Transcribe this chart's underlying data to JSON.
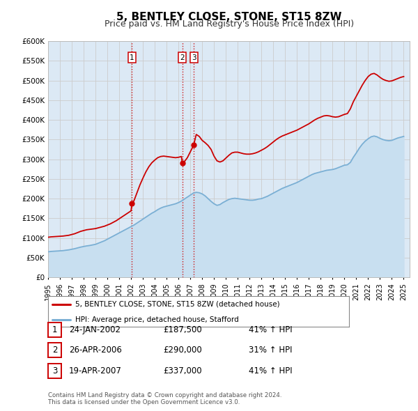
{
  "title": "5, BENTLEY CLOSE, STONE, ST15 8ZW",
  "subtitle": "Price paid vs. HM Land Registry's House Price Index (HPI)",
  "title_fontsize": 11,
  "subtitle_fontsize": 9,
  "ylim": [
    0,
    600000
  ],
  "yticks": [
    0,
    50000,
    100000,
    150000,
    200000,
    250000,
    300000,
    350000,
    400000,
    450000,
    500000,
    550000,
    600000
  ],
  "ytick_labels": [
    "£0",
    "£50K",
    "£100K",
    "£150K",
    "£200K",
    "£250K",
    "£300K",
    "£350K",
    "£400K",
    "£450K",
    "£500K",
    "£550K",
    "£600K"
  ],
  "xlim_start": 1995.0,
  "xlim_end": 2025.5,
  "xtick_years": [
    1995,
    1996,
    1997,
    1998,
    1999,
    2000,
    2001,
    2002,
    2003,
    2004,
    2005,
    2006,
    2007,
    2008,
    2009,
    2010,
    2011,
    2012,
    2013,
    2014,
    2015,
    2016,
    2017,
    2018,
    2019,
    2020,
    2021,
    2022,
    2023,
    2024,
    2025
  ],
  "sale_color": "#cc0000",
  "hpi_color": "#7aafd4",
  "hpi_fill_color": "#c8dff0",
  "sale_linewidth": 1.3,
  "hpi_linewidth": 1.3,
  "marker_color": "#cc0000",
  "marker_size": 6,
  "vline_color": "#cc0000",
  "vline_style": ":",
  "grid_color": "#cccccc",
  "background_color": "#ffffff",
  "plot_bg_color": "#dce9f5",
  "legend_label_sale": "5, BENTLEY CLOSE, STONE, ST15 8ZW (detached house)",
  "legend_label_hpi": "HPI: Average price, detached house, Stafford",
  "table_rows": [
    {
      "num": "1",
      "date": "24-JAN-2002",
      "price": "£187,500",
      "pct": "41% ↑ HPI"
    },
    {
      "num": "2",
      "date": "26-APR-2006",
      "price": "£290,000",
      "pct": "31% ↑ HPI"
    },
    {
      "num": "3",
      "date": "19-APR-2007",
      "price": "£337,000",
      "pct": "41% ↑ HPI"
    }
  ],
  "footnote": "Contains HM Land Registry data © Crown copyright and database right 2024.\nThis data is licensed under the Open Government Licence v3.0.",
  "sale_points": [
    {
      "year": 2002.07,
      "value": 187500,
      "label": "1"
    },
    {
      "year": 2006.32,
      "value": 290000,
      "label": "2"
    },
    {
      "year": 2007.29,
      "value": 337000,
      "label": "3"
    }
  ],
  "hpi_data": [
    [
      1995.0,
      65000
    ],
    [
      1995.25,
      66000
    ],
    [
      1995.5,
      66500
    ],
    [
      1995.75,
      67000
    ],
    [
      1996.0,
      67500
    ],
    [
      1996.25,
      68000
    ],
    [
      1996.5,
      69000
    ],
    [
      1996.75,
      70000
    ],
    [
      1997.0,
      71500
    ],
    [
      1997.25,
      73000
    ],
    [
      1997.5,
      75000
    ],
    [
      1997.75,
      77000
    ],
    [
      1998.0,
      78500
    ],
    [
      1998.25,
      80000
    ],
    [
      1998.5,
      81000
    ],
    [
      1998.75,
      82500
    ],
    [
      1999.0,
      84000
    ],
    [
      1999.25,
      87000
    ],
    [
      1999.5,
      90000
    ],
    [
      1999.75,
      93000
    ],
    [
      2000.0,
      97000
    ],
    [
      2000.25,
      101000
    ],
    [
      2000.5,
      105000
    ],
    [
      2000.75,
      109000
    ],
    [
      2001.0,
      113000
    ],
    [
      2001.25,
      117000
    ],
    [
      2001.5,
      121000
    ],
    [
      2001.75,
      125000
    ],
    [
      2002.0,
      129000
    ],
    [
      2002.25,
      133000
    ],
    [
      2002.5,
      138000
    ],
    [
      2002.75,
      143000
    ],
    [
      2003.0,
      148000
    ],
    [
      2003.25,
      153000
    ],
    [
      2003.5,
      158000
    ],
    [
      2003.75,
      163000
    ],
    [
      2004.0,
      167000
    ],
    [
      2004.25,
      172000
    ],
    [
      2004.5,
      176000
    ],
    [
      2004.75,
      179000
    ],
    [
      2005.0,
      181000
    ],
    [
      2005.25,
      183000
    ],
    [
      2005.5,
      185000
    ],
    [
      2005.75,
      187000
    ],
    [
      2006.0,
      190000
    ],
    [
      2006.25,
      194000
    ],
    [
      2006.5,
      199000
    ],
    [
      2006.75,
      204000
    ],
    [
      2007.0,
      209000
    ],
    [
      2007.25,
      214000
    ],
    [
      2007.5,
      216000
    ],
    [
      2007.75,
      215000
    ],
    [
      2008.0,
      212000
    ],
    [
      2008.25,
      207000
    ],
    [
      2008.5,
      200000
    ],
    [
      2008.75,
      193000
    ],
    [
      2009.0,
      187000
    ],
    [
      2009.25,
      183000
    ],
    [
      2009.5,
      185000
    ],
    [
      2009.75,
      190000
    ],
    [
      2010.0,
      194000
    ],
    [
      2010.25,
      198000
    ],
    [
      2010.5,
      200000
    ],
    [
      2010.75,
      201000
    ],
    [
      2011.0,
      200000
    ],
    [
      2011.25,
      199000
    ],
    [
      2011.5,
      198000
    ],
    [
      2011.75,
      197000
    ],
    [
      2012.0,
      196000
    ],
    [
      2012.25,
      196000
    ],
    [
      2012.5,
      197000
    ],
    [
      2012.75,
      199000
    ],
    [
      2013.0,
      200000
    ],
    [
      2013.25,
      203000
    ],
    [
      2013.5,
      206000
    ],
    [
      2013.75,
      210000
    ],
    [
      2014.0,
      214000
    ],
    [
      2014.25,
      218000
    ],
    [
      2014.5,
      222000
    ],
    [
      2014.75,
      226000
    ],
    [
      2015.0,
      229000
    ],
    [
      2015.25,
      232000
    ],
    [
      2015.5,
      235000
    ],
    [
      2015.75,
      238000
    ],
    [
      2016.0,
      241000
    ],
    [
      2016.25,
      245000
    ],
    [
      2016.5,
      249000
    ],
    [
      2016.75,
      253000
    ],
    [
      2017.0,
      257000
    ],
    [
      2017.25,
      261000
    ],
    [
      2017.5,
      264000
    ],
    [
      2017.75,
      266000
    ],
    [
      2018.0,
      268000
    ],
    [
      2018.25,
      270000
    ],
    [
      2018.5,
      272000
    ],
    [
      2018.75,
      273000
    ],
    [
      2019.0,
      274000
    ],
    [
      2019.25,
      276000
    ],
    [
      2019.5,
      279000
    ],
    [
      2019.75,
      282000
    ],
    [
      2020.0,
      285000
    ],
    [
      2020.25,
      286000
    ],
    [
      2020.5,
      292000
    ],
    [
      2020.75,
      305000
    ],
    [
      2021.0,
      316000
    ],
    [
      2021.25,
      328000
    ],
    [
      2021.5,
      338000
    ],
    [
      2021.75,
      346000
    ],
    [
      2022.0,
      352000
    ],
    [
      2022.25,
      357000
    ],
    [
      2022.5,
      359000
    ],
    [
      2022.75,
      357000
    ],
    [
      2023.0,
      353000
    ],
    [
      2023.25,
      350000
    ],
    [
      2023.5,
      348000
    ],
    [
      2023.75,
      347000
    ],
    [
      2024.0,
      348000
    ],
    [
      2024.25,
      351000
    ],
    [
      2024.5,
      354000
    ],
    [
      2024.75,
      356000
    ],
    [
      2025.0,
      358000
    ]
  ],
  "sale_data": [
    [
      1995.0,
      102000
    ],
    [
      1995.25,
      103000
    ],
    [
      1995.5,
      103500
    ],
    [
      1995.75,
      104000
    ],
    [
      1996.0,
      104500
    ],
    [
      1996.25,
      105000
    ],
    [
      1996.5,
      106000
    ],
    [
      1996.75,
      107000
    ],
    [
      1997.0,
      109000
    ],
    [
      1997.25,
      111000
    ],
    [
      1997.5,
      114000
    ],
    [
      1997.75,
      117000
    ],
    [
      1998.0,
      119000
    ],
    [
      1998.25,
      121000
    ],
    [
      1998.5,
      122000
    ],
    [
      1998.75,
      123000
    ],
    [
      1999.0,
      124000
    ],
    [
      1999.25,
      126000
    ],
    [
      1999.5,
      128000
    ],
    [
      1999.75,
      130000
    ],
    [
      2000.0,
      133000
    ],
    [
      2000.25,
      136000
    ],
    [
      2000.5,
      140000
    ],
    [
      2000.75,
      144000
    ],
    [
      2001.0,
      149000
    ],
    [
      2001.25,
      154000
    ],
    [
      2001.5,
      159000
    ],
    [
      2001.75,
      164000
    ],
    [
      2002.0,
      169000
    ],
    [
      2002.07,
      187500
    ],
    [
      2002.25,
      195000
    ],
    [
      2002.5,
      215000
    ],
    [
      2002.75,
      235000
    ],
    [
      2003.0,
      252000
    ],
    [
      2003.25,
      268000
    ],
    [
      2003.5,
      281000
    ],
    [
      2003.75,
      291000
    ],
    [
      2004.0,
      298000
    ],
    [
      2004.25,
      304000
    ],
    [
      2004.5,
      307000
    ],
    [
      2004.75,
      308000
    ],
    [
      2005.0,
      307000
    ],
    [
      2005.25,
      306000
    ],
    [
      2005.5,
      305000
    ],
    [
      2005.75,
      304000
    ],
    [
      2006.0,
      305000
    ],
    [
      2006.25,
      307000
    ],
    [
      2006.32,
      290000
    ],
    [
      2006.5,
      294000
    ],
    [
      2006.75,
      304000
    ],
    [
      2007.0,
      319000
    ],
    [
      2007.25,
      334000
    ],
    [
      2007.29,
      337000
    ],
    [
      2007.5,
      363000
    ],
    [
      2007.75,
      358000
    ],
    [
      2008.0,
      348000
    ],
    [
      2008.25,
      342000
    ],
    [
      2008.5,
      335000
    ],
    [
      2008.75,
      325000
    ],
    [
      2009.0,
      308000
    ],
    [
      2009.25,
      296000
    ],
    [
      2009.5,
      293000
    ],
    [
      2009.75,
      296000
    ],
    [
      2010.0,
      303000
    ],
    [
      2010.25,
      310000
    ],
    [
      2010.5,
      316000
    ],
    [
      2010.75,
      318000
    ],
    [
      2011.0,
      318000
    ],
    [
      2011.25,
      316000
    ],
    [
      2011.5,
      314000
    ],
    [
      2011.75,
      313000
    ],
    [
      2012.0,
      313000
    ],
    [
      2012.25,
      314000
    ],
    [
      2012.5,
      316000
    ],
    [
      2012.75,
      319000
    ],
    [
      2013.0,
      323000
    ],
    [
      2013.25,
      327000
    ],
    [
      2013.5,
      332000
    ],
    [
      2013.75,
      338000
    ],
    [
      2014.0,
      344000
    ],
    [
      2014.25,
      350000
    ],
    [
      2014.5,
      355000
    ],
    [
      2014.75,
      359000
    ],
    [
      2015.0,
      362000
    ],
    [
      2015.25,
      365000
    ],
    [
      2015.5,
      368000
    ],
    [
      2015.75,
      371000
    ],
    [
      2016.0,
      374000
    ],
    [
      2016.25,
      378000
    ],
    [
      2016.5,
      382000
    ],
    [
      2016.75,
      386000
    ],
    [
      2017.0,
      390000
    ],
    [
      2017.25,
      395000
    ],
    [
      2017.5,
      400000
    ],
    [
      2017.75,
      404000
    ],
    [
      2018.0,
      407000
    ],
    [
      2018.25,
      410000
    ],
    [
      2018.5,
      411000
    ],
    [
      2018.75,
      410000
    ],
    [
      2019.0,
      408000
    ],
    [
      2019.25,
      407000
    ],
    [
      2019.5,
      408000
    ],
    [
      2019.75,
      411000
    ],
    [
      2020.0,
      414000
    ],
    [
      2020.25,
      416000
    ],
    [
      2020.5,
      428000
    ],
    [
      2020.75,
      446000
    ],
    [
      2021.0,
      460000
    ],
    [
      2021.25,
      474000
    ],
    [
      2021.5,
      488000
    ],
    [
      2021.75,
      500000
    ],
    [
      2022.0,
      510000
    ],
    [
      2022.25,
      516000
    ],
    [
      2022.5,
      518000
    ],
    [
      2022.75,
      514000
    ],
    [
      2023.0,
      508000
    ],
    [
      2023.25,
      503000
    ],
    [
      2023.5,
      500000
    ],
    [
      2023.75,
      498000
    ],
    [
      2024.0,
      499000
    ],
    [
      2024.25,
      502000
    ],
    [
      2024.5,
      505000
    ],
    [
      2024.75,
      508000
    ],
    [
      2025.0,
      510000
    ]
  ]
}
